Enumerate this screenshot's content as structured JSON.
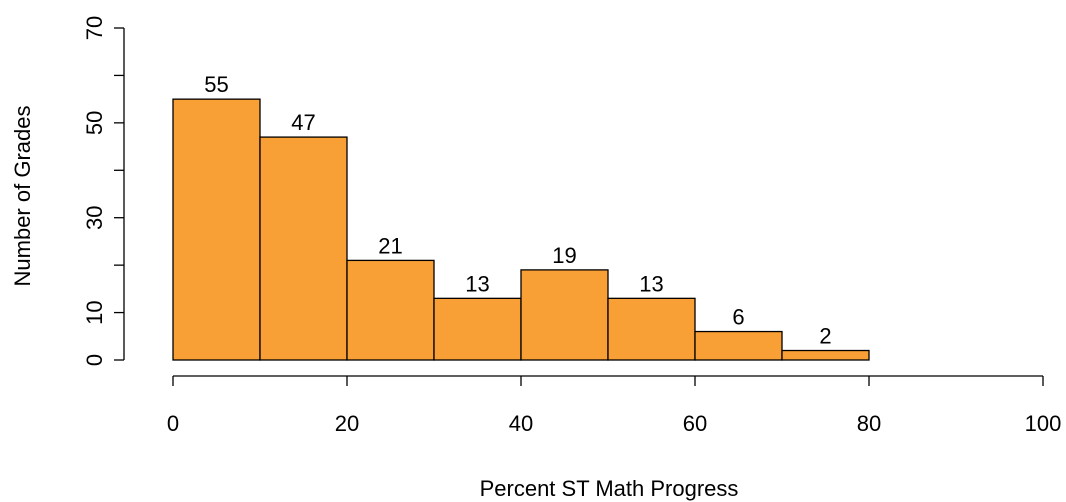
{
  "chart_data": {
    "type": "bar",
    "subtype": "histogram",
    "bins": [
      {
        "start": 0,
        "end": 10,
        "count": 55
      },
      {
        "start": 10,
        "end": 20,
        "count": 47
      },
      {
        "start": 20,
        "end": 30,
        "count": 21
      },
      {
        "start": 30,
        "end": 40,
        "count": 13
      },
      {
        "start": 40,
        "end": 50,
        "count": 19
      },
      {
        "start": 50,
        "end": 60,
        "count": 13
      },
      {
        "start": 60,
        "end": 70,
        "count": 6
      },
      {
        "start": 70,
        "end": 80,
        "count": 2
      }
    ],
    "data_labels": [
      "55",
      "47",
      "21",
      "13",
      "19",
      "13",
      "6",
      "2"
    ],
    "xlabel": "Percent ST Math Progress",
    "ylabel": "Number of Grades",
    "xlim": [
      0,
      100
    ],
    "ylim": [
      0,
      70
    ],
    "x_ticks": [
      0,
      20,
      40,
      60,
      80,
      100
    ],
    "x_tick_labels": [
      "0",
      "20",
      "40",
      "60",
      "80",
      "100"
    ],
    "y_ticks": [
      0,
      10,
      20,
      30,
      40,
      50,
      60,
      70
    ],
    "y_tick_labels": [
      "0",
      "10",
      "",
      "30",
      "",
      "50",
      "",
      "70"
    ],
    "bar_color": "#F8A035",
    "edge_color": "#000000",
    "grid": false,
    "legend": "none"
  }
}
